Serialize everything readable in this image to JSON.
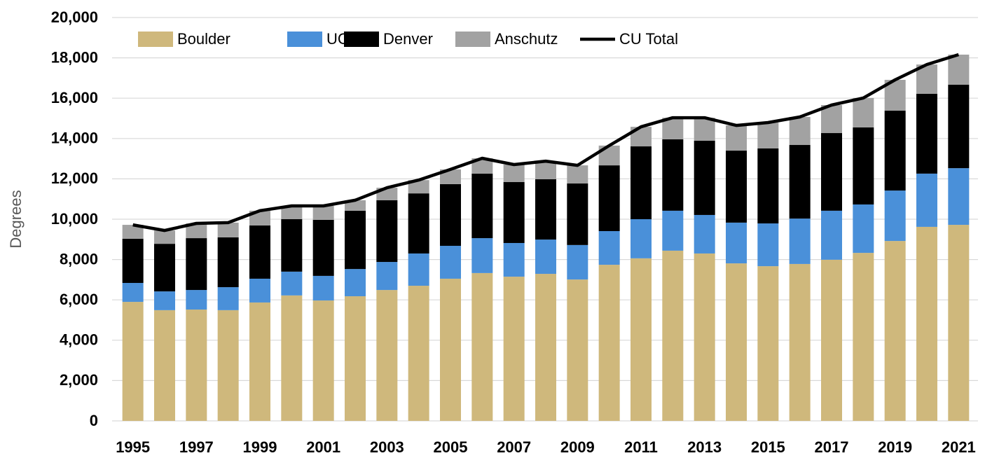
{
  "chart_data": {
    "type": "stacked-bar-line",
    "y_axis_title": "Degrees",
    "categories": [
      1995,
      null,
      1997,
      null,
      1999,
      null,
      2001,
      null,
      2003,
      null,
      2005,
      null,
      2007,
      null,
      2009,
      null,
      2011,
      null,
      2013,
      null,
      2015,
      null,
      2017,
      null,
      2019,
      null,
      2021
    ],
    "series": [
      {
        "name": "Boulder",
        "color": "#cfb87c",
        "kind": "bar",
        "values": [
          5900,
          5490,
          5520,
          5490,
          5870,
          6220,
          5970,
          6180,
          6490,
          6700,
          7050,
          7330,
          7150,
          7290,
          7010,
          7740,
          8060,
          8440,
          8300,
          7810,
          7670,
          7780,
          7990,
          8330,
          8920,
          9620,
          9720
        ]
      },
      {
        "name": "UCCS",
        "color": "#4a90d9",
        "kind": "bar",
        "values": [
          940,
          930,
          970,
          1140,
          1180,
          1180,
          1220,
          1350,
          1390,
          1600,
          1630,
          1730,
          1670,
          1700,
          1710,
          1670,
          1940,
          1980,
          1910,
          2020,
          2120,
          2250,
          2430,
          2400,
          2500,
          2640,
          2810
        ]
      },
      {
        "name": "Denver",
        "color": "#000000",
        "kind": "bar",
        "values": [
          2190,
          2360,
          2570,
          2470,
          2640,
          2600,
          2780,
          2890,
          3060,
          2980,
          3060,
          3200,
          3020,
          2990,
          3050,
          3260,
          3610,
          3540,
          3680,
          3570,
          3720,
          3650,
          3850,
          3820,
          3960,
          3960,
          4140
        ]
      },
      {
        "name": "Anschutz",
        "color": "#a2a2a2",
        "kind": "bar",
        "values": [
          690,
          660,
          730,
          730,
          730,
          660,
          690,
          520,
          620,
          660,
          730,
          760,
          870,
          900,
          900,
          980,
          970,
          1070,
          1140,
          1250,
          1280,
          1390,
          1390,
          1460,
          1530,
          1450,
          1490
        ]
      },
      {
        "name": "CU Total",
        "color": "#000000",
        "kind": "line",
        "values": [
          9720,
          9440,
          9790,
          9830,
          10420,
          10660,
          10660,
          10940,
          11560,
          11940,
          12470,
          13020,
          12710,
          12880,
          12670,
          13650,
          14580,
          15030,
          15030,
          14650,
          14790,
          15070,
          15660,
          16010,
          16910,
          17670,
          18160
        ]
      }
    ],
    "ylim": [
      0,
      20000
    ],
    "yticks": [
      0,
      {
        "value": 2000,
        "label": "2,000"
      },
      {
        "value": 4000,
        "label": "4,000"
      },
      {
        "value": 6000,
        "label": "6,000"
      },
      {
        "value": 8000,
        "label": "8,000"
      },
      {
        "value": 10000,
        "label": "10,000"
      },
      {
        "value": 12000,
        "label": "12,000"
      },
      {
        "value": 14000,
        "label": "14,000"
      },
      {
        "value": 16000,
        "label": "16,000"
      },
      {
        "value": 18000,
        "label": "18,000"
      },
      {
        "value": 20000,
        "label": "20,000"
      }
    ],
    "grid": true,
    "legend": "top-left"
  }
}
